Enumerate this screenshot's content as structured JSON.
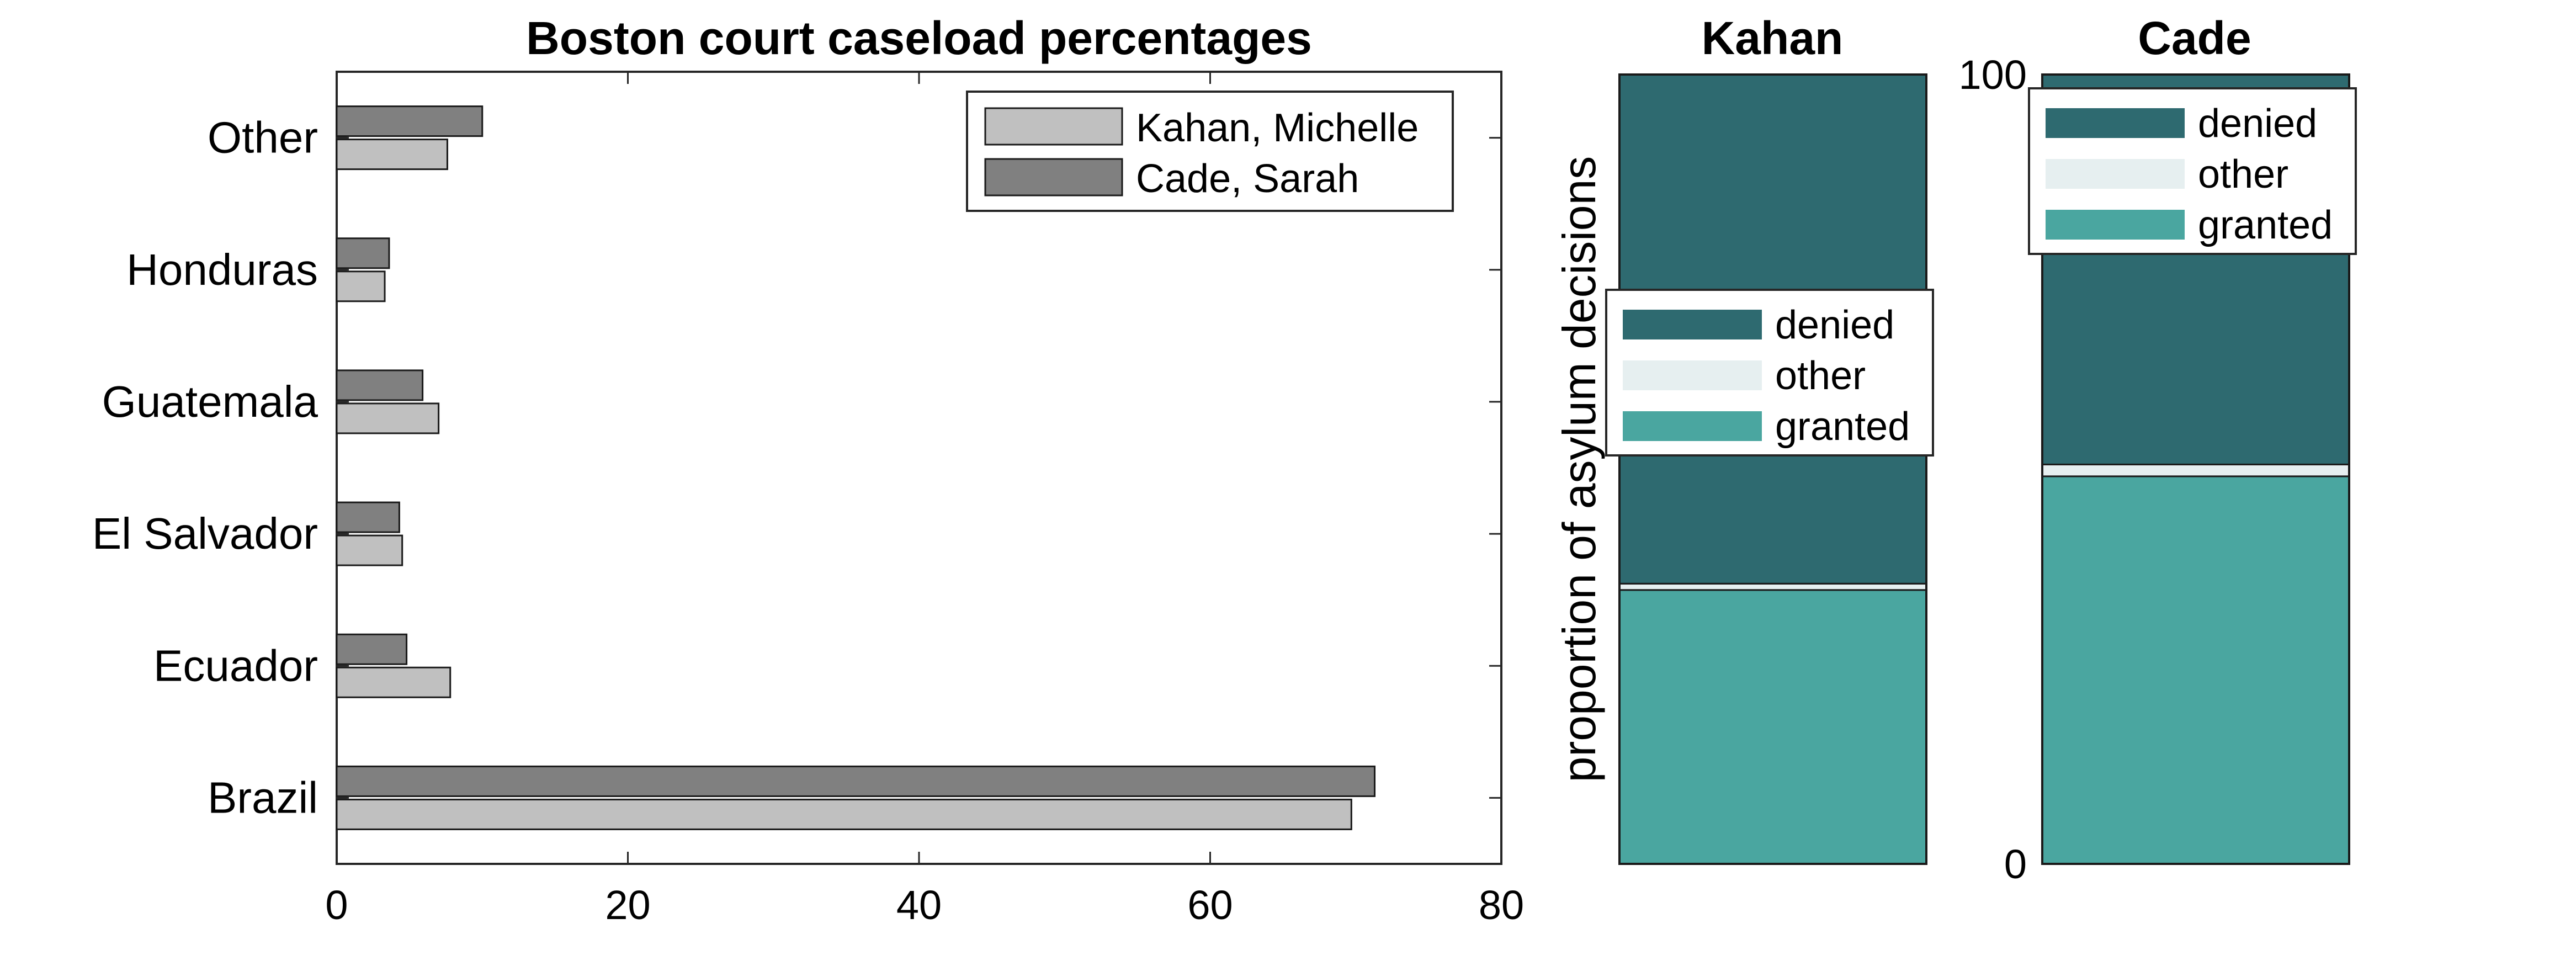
{
  "chart_data": [
    {
      "type": "bar",
      "orientation": "horizontal",
      "title": "Boston court caseload percentages",
      "xlabel": "",
      "ylabel": "",
      "categories": [
        "Brazil",
        "Ecuador",
        "El Salvador",
        "Guatemala",
        "Honduras",
        "Other"
      ],
      "xlim": [
        0,
        80
      ],
      "xticks": [
        "0",
        "20",
        "40",
        "60",
        "80"
      ],
      "legend_position": "top-right",
      "series": [
        {
          "name": "Kahan, Michelle",
          "color": "#c0c0c0",
          "values": [
            69.7,
            7.8,
            4.5,
            7.0,
            3.3,
            7.6
          ]
        },
        {
          "name": "Cade, Sarah",
          "color": "#808080",
          "values": [
            71.3,
            4.8,
            4.3,
            5.9,
            3.6,
            10.0
          ]
        }
      ]
    },
    {
      "type": "bar",
      "stacked": true,
      "title": "Kahan",
      "ylabel": "proportion of asylum decisions",
      "ylim": [
        0,
        100
      ],
      "legend_position": "center",
      "segments": [
        {
          "name": "granted",
          "color": "#4aa6a0",
          "value": 34.7
        },
        {
          "name": "other",
          "color": "#e6eff0",
          "value": 0.8
        },
        {
          "name": "denied",
          "color": "#2e6a70",
          "value": 64.5
        }
      ]
    },
    {
      "type": "bar",
      "stacked": true,
      "title": "Cade",
      "ylim": [
        0,
        100
      ],
      "yticks": [
        "0",
        "100"
      ],
      "legend_position": "top",
      "segments": [
        {
          "name": "granted",
          "color": "#4aa6a0",
          "value": 49.1
        },
        {
          "name": "other",
          "color": "#e6eff0",
          "value": 1.5
        },
        {
          "name": "denied",
          "color": "#2e6a70",
          "value": 49.4
        }
      ]
    }
  ]
}
